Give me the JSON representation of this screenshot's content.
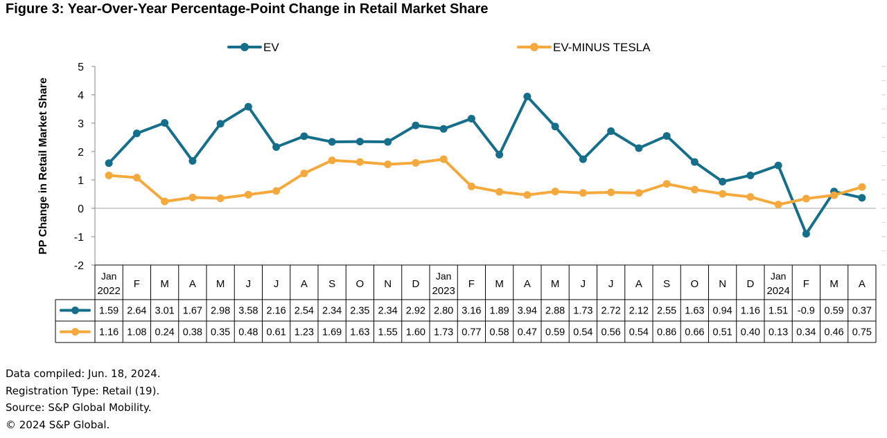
{
  "figure": {
    "title": "Figure 3: Year-Over-Year Percentage-Point Change in Retail Market Share"
  },
  "footnotes": [
    "Data compiled: Jun. 18, 2024.",
    "Registration Type: Retail (19).",
    "Source: S&P Global Mobility.",
    "© 2024 S&P Global."
  ],
  "chart_data": {
    "type": "line",
    "title": "",
    "xlabel": "",
    "ylabel": "PP Change in Retail Market Share",
    "ylim": [
      -2,
      5
    ],
    "yticks": [
      "5",
      "4",
      "3",
      "2",
      "1",
      "0",
      "-1",
      "-2"
    ],
    "yticks_values": [
      5,
      4,
      3,
      2,
      1,
      0,
      -1,
      -2
    ],
    "grid": false,
    "legend_position": "top",
    "categories": [
      [
        "Jan",
        "2022"
      ],
      [
        "F"
      ],
      [
        "M"
      ],
      [
        "A"
      ],
      [
        "M"
      ],
      [
        "J"
      ],
      [
        "J"
      ],
      [
        "A"
      ],
      [
        "S"
      ],
      [
        "O"
      ],
      [
        "N"
      ],
      [
        "D"
      ],
      [
        "Jan",
        "2023"
      ],
      [
        "F"
      ],
      [
        "M"
      ],
      [
        "A"
      ],
      [
        "M"
      ],
      [
        "J"
      ],
      [
        "J"
      ],
      [
        "A"
      ],
      [
        "S"
      ],
      [
        "O"
      ],
      [
        "N"
      ],
      [
        "D"
      ],
      [
        "Jan",
        "2024"
      ],
      [
        "F"
      ],
      [
        "M"
      ],
      [
        "A"
      ]
    ],
    "series": [
      {
        "name": "EV",
        "color": "#156E8A",
        "values": [
          1.59,
          2.64,
          3.01,
          1.67,
          2.98,
          3.58,
          2.16,
          2.54,
          2.34,
          2.35,
          2.34,
          2.92,
          2.8,
          3.16,
          1.89,
          3.94,
          2.88,
          1.73,
          2.72,
          2.12,
          2.55,
          1.63,
          0.94,
          1.16,
          1.51,
          -0.9,
          0.59,
          0.37
        ],
        "labels": [
          "1.59",
          "2.64",
          "3.01",
          "1.67",
          "2.98",
          "3.58",
          "2.16",
          "2.54",
          "2.34",
          "2.35",
          "2.34",
          "2.92",
          "2.80",
          "3.16",
          "1.89",
          "3.94",
          "2.88",
          "1.73",
          "2.72",
          "2.12",
          "2.55",
          "1.63",
          "0.94",
          "1.16",
          "1.51",
          "-0.9",
          "0.59",
          "0.37"
        ]
      },
      {
        "name": "EV-MINUS TESLA",
        "color": "#F5A93C",
        "values": [
          1.16,
          1.08,
          0.24,
          0.38,
          0.35,
          0.48,
          0.61,
          1.23,
          1.69,
          1.63,
          1.55,
          1.6,
          1.73,
          0.77,
          0.58,
          0.47,
          0.59,
          0.54,
          0.56,
          0.54,
          0.86,
          0.66,
          0.51,
          0.4,
          0.13,
          0.34,
          0.46,
          0.75
        ],
        "labels": [
          "1.16",
          "1.08",
          "0.24",
          "0.38",
          "0.35",
          "0.48",
          "0.61",
          "1.23",
          "1.69",
          "1.63",
          "1.55",
          "1.60",
          "1.73",
          "0.77",
          "0.58",
          "0.47",
          "0.59",
          "0.54",
          "0.56",
          "0.54",
          "0.86",
          "0.66",
          "0.51",
          "0.40",
          "0.13",
          "0.34",
          "0.46",
          "0.75"
        ]
      }
    ]
  }
}
